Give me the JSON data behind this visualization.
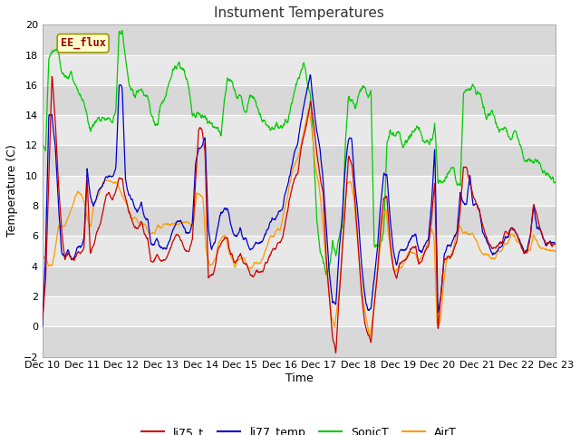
{
  "title": "Instument Temperatures",
  "xlabel": "Time",
  "ylabel": "Temperature (C)",
  "ylim": [
    -2,
    20
  ],
  "xlim": [
    0,
    13
  ],
  "xtick_labels": [
    "Dec 10",
    "Dec 11",
    "Dec 12",
    "Dec 13",
    "Dec 14",
    "Dec 15",
    "Dec 16",
    "Dec 17",
    "Dec 18",
    "Dec 19",
    "Dec 20",
    "Dec 21",
    "Dec 22",
    "Dec 23"
  ],
  "bg_color": "#ffffff",
  "plot_bg_color": "#d8d8d8",
  "band_colors": [
    "#d8d8d8",
    "#e8e8e8"
  ],
  "annotation_text": "EE_flux",
  "annotation_bg": "#ffffcc",
  "annotation_border": "#999900",
  "annotation_text_color": "#990000",
  "colors": {
    "li75_t": "#cc0000",
    "li77_temp": "#0000cc",
    "SonicT": "#00cc00",
    "AirT": "#ff9900"
  },
  "legend_labels": [
    "li75_t",
    "li77_temp",
    "SonicT",
    "AirT"
  ],
  "yticks": [
    -2,
    0,
    2,
    4,
    6,
    8,
    10,
    12,
    14,
    16,
    18,
    20
  ]
}
